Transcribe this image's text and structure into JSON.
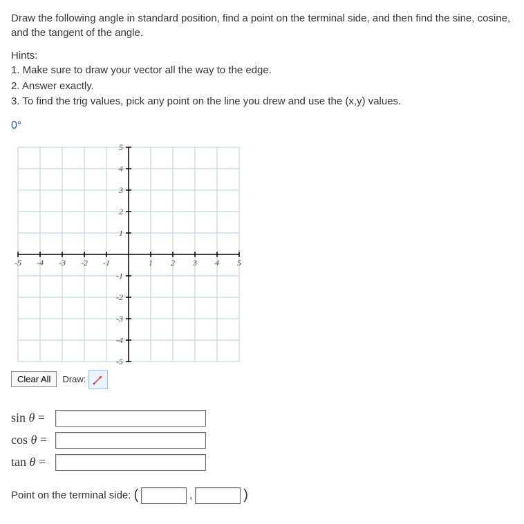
{
  "instructions": "Draw the following angle in standard position, find a point on the terminal side, and then find the sine, cosine, and the tangent of the angle.",
  "hints_label": "Hints:",
  "hints": [
    "1. Make sure to draw your vector all the way to the edge.",
    "2. Answer exactly.",
    "3. To find the trig values, pick any point on the line you drew and use the (x,y) values."
  ],
  "angle": "0°",
  "graph": {
    "xmin": -5,
    "xmax": 5,
    "ymin": -5,
    "ymax": 5,
    "xtick_labels": [
      "-5",
      "-4",
      "-3",
      "-2",
      "-1",
      "1",
      "2",
      "3",
      "4",
      "5"
    ],
    "xtick_values": [
      -5,
      -4,
      -3,
      -2,
      -1,
      1,
      2,
      3,
      4,
      5
    ],
    "ytick_labels": [
      "5",
      "4",
      "3",
      "2",
      "1",
      "-1",
      "-2",
      "-3",
      "-4",
      "-5"
    ],
    "ytick_values": [
      5,
      4,
      3,
      2,
      1,
      -1,
      -2,
      -3,
      -4,
      -5
    ],
    "grid_color": "#b8cde0",
    "axis_color": "#000000",
    "tick_font_color": "#444",
    "tick_font_size": 12,
    "tick_font_style": "italic"
  },
  "toolbar": {
    "clear_label": "Clear All",
    "draw_label": "Draw:",
    "arrow_tool_color": "#d73a3a"
  },
  "trig": {
    "sin_label": "sin θ =",
    "cos_label": "cos θ =",
    "tan_label": "tan θ =",
    "sin_value": "",
    "cos_value": "",
    "tan_value": ""
  },
  "point": {
    "label": "Point on the terminal side: ",
    "x_value": "",
    "y_value": ""
  }
}
